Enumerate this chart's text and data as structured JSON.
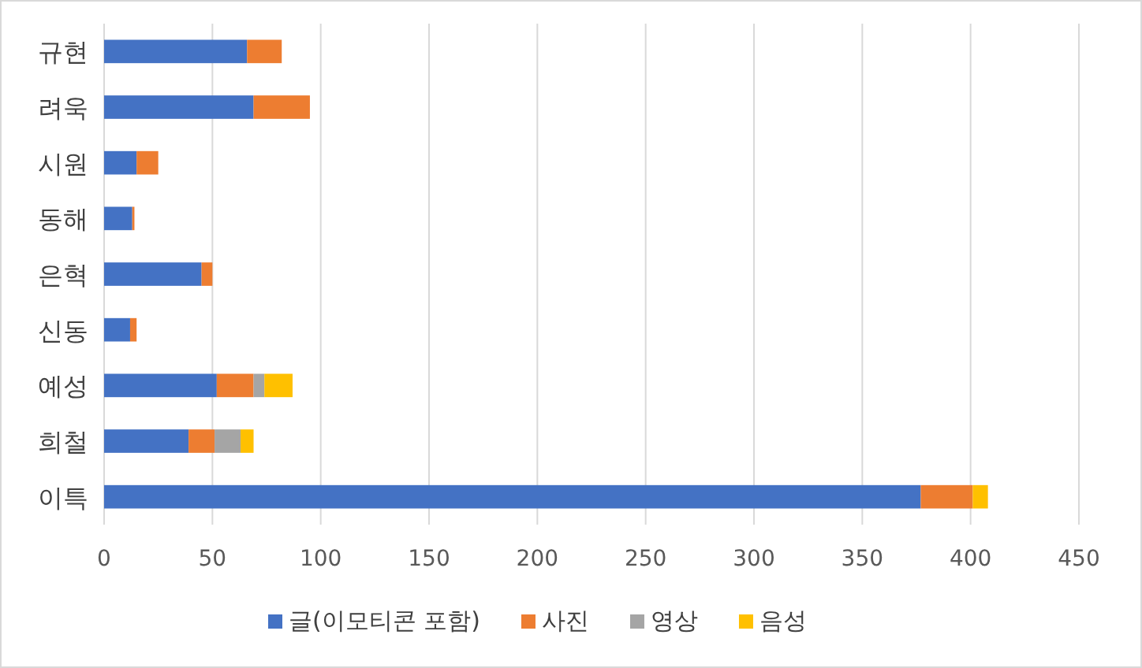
{
  "chart_data": {
    "type": "bar",
    "orientation": "horizontal",
    "stacked": true,
    "categories": [
      "규현",
      "려욱",
      "시원",
      "동해",
      "은혁",
      "신동",
      "예성",
      "희철",
      "이특"
    ],
    "series": [
      {
        "name": "글(이모티콘 포함)",
        "color": "#4472c4",
        "values": [
          66,
          69,
          15,
          13,
          45,
          12,
          52,
          39,
          377
        ]
      },
      {
        "name": "사진",
        "color": "#ed7d31",
        "values": [
          16,
          26,
          10,
          1,
          5,
          3,
          17,
          12,
          24
        ]
      },
      {
        "name": "영상",
        "color": "#a5a5a5",
        "values": [
          0,
          0,
          0,
          0,
          0,
          0,
          5,
          12,
          0
        ]
      },
      {
        "name": "음성",
        "color": "#ffc000",
        "values": [
          0,
          0,
          0,
          0,
          0,
          0,
          13,
          6,
          7
        ]
      }
    ],
    "xlim": [
      0,
      450
    ],
    "xticks": [
      0,
      50,
      100,
      150,
      200,
      250,
      300,
      350,
      400,
      450
    ],
    "grid": "x",
    "legend": "bottom"
  }
}
